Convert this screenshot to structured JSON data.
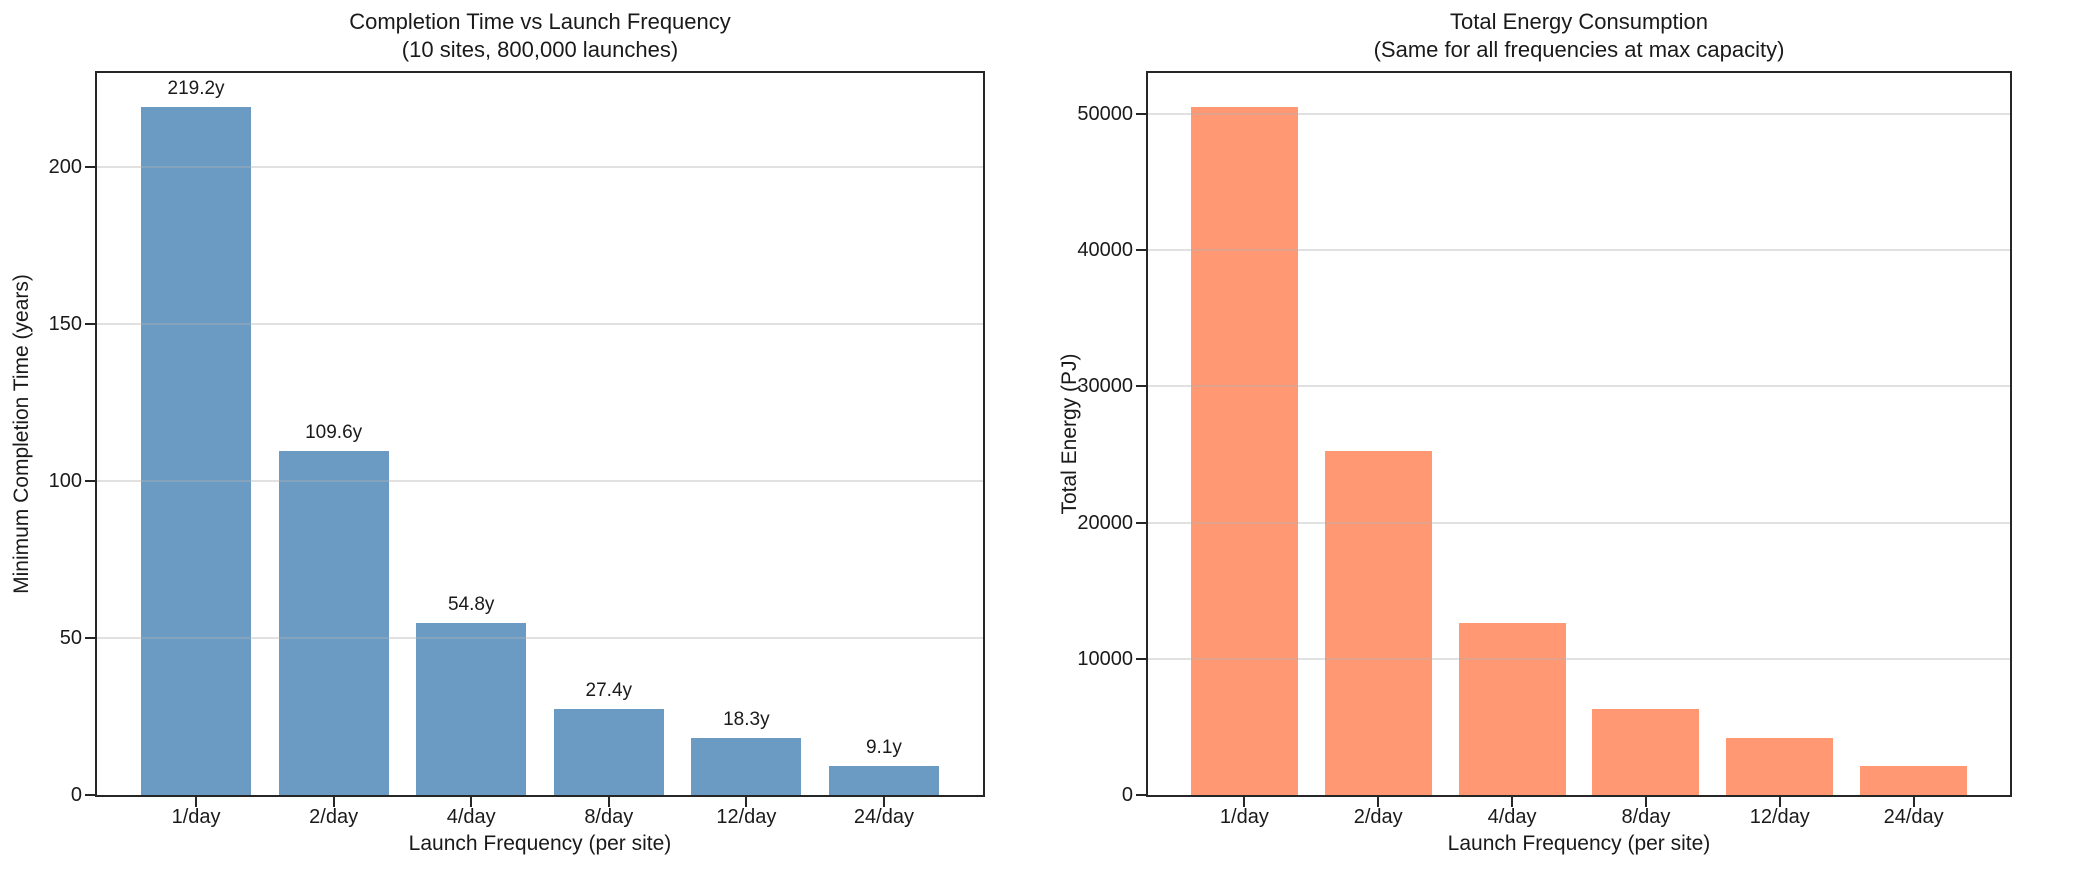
{
  "figure": {
    "background": "#ffffff",
    "text_color": "#1a1a1a",
    "spine_color": "#262626",
    "grid_color": "rgba(176,176,176,0.38)"
  },
  "chart_data": [
    {
      "type": "bar",
      "title": "Completion Time vs Launch Frequency",
      "subtitle": "(10 sites, 800,000 launches)",
      "xlabel": "Launch Frequency (per site)",
      "ylabel": "Minimum Completion Time (years)",
      "categories": [
        "1/day",
        "2/day",
        "4/day",
        "8/day",
        "12/day",
        "24/day"
      ],
      "values": [
        219.2,
        109.6,
        54.8,
        27.4,
        18.3,
        9.1
      ],
      "bar_labels": [
        "219.2y",
        "109.6y",
        "54.8y",
        "27.4y",
        "18.3y",
        "9.1y"
      ],
      "bar_color": "#6b9bc3",
      "ylim": [
        0,
        230
      ],
      "yticks": [
        0,
        50,
        100,
        150,
        200
      ],
      "ytick_labels": [
        "0",
        "50",
        "100",
        "150",
        "200"
      ],
      "grid": true,
      "legend": "none"
    },
    {
      "type": "bar",
      "title": "Total Energy Consumption",
      "subtitle": "(Same for all frequencies at max capacity)",
      "xlabel": "Launch Frequency (per site)",
      "ylabel": "Total Energy (PJ)",
      "categories": [
        "1/day",
        "2/day",
        "4/day",
        "8/day",
        "12/day",
        "24/day"
      ],
      "values": [
        50500,
        25250,
        12650,
        6300,
        4200,
        2100
      ],
      "bar_labels": null,
      "bar_color": "#ff9873",
      "ylim": [
        0,
        53000
      ],
      "yticks": [
        0,
        10000,
        20000,
        30000,
        40000,
        50000
      ],
      "ytick_labels": [
        "0",
        "10000",
        "20000",
        "30000",
        "40000",
        "50000"
      ],
      "grid": true,
      "legend": "none"
    }
  ]
}
